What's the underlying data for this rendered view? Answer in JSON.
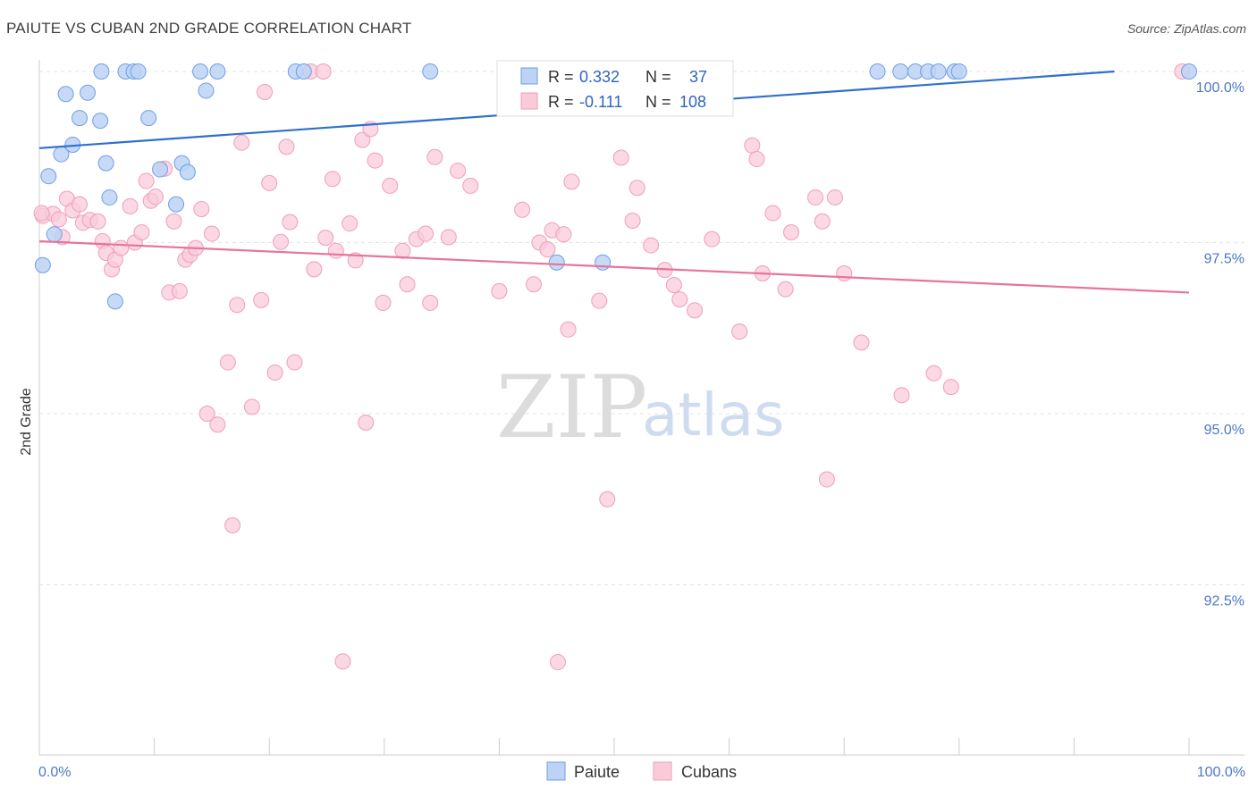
{
  "header": {
    "title": "PAIUTE VS CUBAN 2ND GRADE CORRELATION CHART",
    "source": "Source: ZipAtlas.com"
  },
  "watermark": {
    "zip": "ZIP",
    "atlas": "atlas"
  },
  "stats": [
    {
      "r_label": "R =",
      "r_value": "0.332",
      "n_label": "N =",
      "n_value": "37",
      "color": "#6f9ee8"
    },
    {
      "r_label": "R =",
      "r_value": "-0.111",
      "n_label": "N =",
      "n_value": "108",
      "color": "#f2a7bf"
    }
  ],
  "legend": [
    {
      "label": "Paiute",
      "color": "#6f9ee8"
    },
    {
      "label": "Cubans",
      "color": "#f2a7bf"
    }
  ],
  "colors": {
    "paiute_fill": "#bcd3f5",
    "paiute_stroke": "#6f9ee8",
    "paiute_line": "#2f6fcf",
    "cuban_fill": "#f9cbd9",
    "cuban_stroke": "#ef9fb9",
    "cuban_line": "#e8739b",
    "tick_label": "#4a78c8"
  },
  "chart_data": {
    "type": "scatter",
    "title": "PAIUTE VS CUBAN 2ND GRADE CORRELATION CHART",
    "xlabel": "",
    "ylabel": "2nd Grade",
    "xlim": [
      0,
      100
    ],
    "ylim": [
      90.1,
      100.4
    ],
    "y_ticks": [
      100.0,
      97.5,
      95.0,
      92.5
    ],
    "y_tick_labels": [
      "100.0%",
      "97.5%",
      "95.0%",
      "92.5%"
    ],
    "x_tick_labels": [
      "0.0%",
      "100.0%"
    ],
    "grid": true,
    "legend_position": "bottom-center",
    "series": [
      {
        "name": "Paiute",
        "trend": {
          "x": [
            0,
            93.5
          ],
          "y": [
            98.88,
            100.0
          ]
        },
        "points": [
          [
            0.3,
            97.17
          ],
          [
            0.8,
            98.47
          ],
          [
            1.3,
            97.62
          ],
          [
            1.9,
            98.79
          ],
          [
            2.3,
            99.67
          ],
          [
            2.9,
            98.93
          ],
          [
            3.5,
            99.32
          ],
          [
            4.2,
            99.69
          ],
          [
            5.3,
            99.28
          ],
          [
            5.4,
            100.0
          ],
          [
            5.8,
            98.66
          ],
          [
            6.1,
            98.16
          ],
          [
            6.6,
            96.64
          ],
          [
            7.5,
            100.0
          ],
          [
            8.2,
            100.0
          ],
          [
            8.6,
            100.0
          ],
          [
            9.5,
            99.32
          ],
          [
            10.5,
            98.57
          ],
          [
            11.9,
            98.06
          ],
          [
            12.4,
            98.66
          ],
          [
            12.9,
            98.53
          ],
          [
            14.0,
            100.0
          ],
          [
            14.5,
            99.72
          ],
          [
            15.5,
            100.0
          ],
          [
            22.3,
            100.0
          ],
          [
            23.0,
            100.0
          ],
          [
            34.0,
            100.0
          ],
          [
            45.0,
            97.21
          ],
          [
            49.0,
            97.21
          ],
          [
            72.9,
            100.0
          ],
          [
            74.9,
            100.0
          ],
          [
            76.2,
            100.0
          ],
          [
            77.3,
            100.0
          ],
          [
            78.2,
            100.0
          ],
          [
            79.6,
            100.0
          ],
          [
            80.0,
            100.0
          ],
          [
            100.0,
            100.0
          ]
        ]
      },
      {
        "name": "Cubans",
        "trend": {
          "x": [
            0,
            100
          ],
          "y": [
            97.52,
            96.77
          ]
        },
        "points": [
          [
            0.3,
            97.89
          ],
          [
            1.2,
            97.92
          ],
          [
            1.7,
            97.84
          ],
          [
            2.0,
            97.58
          ],
          [
            2.4,
            98.14
          ],
          [
            2.9,
            97.97
          ],
          [
            3.5,
            98.06
          ],
          [
            3.8,
            97.79
          ],
          [
            4.4,
            97.83
          ],
          [
            5.1,
            97.81
          ],
          [
            5.5,
            97.52
          ],
          [
            5.8,
            97.35
          ],
          [
            6.3,
            97.11
          ],
          [
            6.6,
            97.25
          ],
          [
            7.1,
            97.42
          ],
          [
            7.9,
            98.03
          ],
          [
            8.3,
            97.5
          ],
          [
            8.9,
            97.65
          ],
          [
            9.3,
            98.4
          ],
          [
            9.7,
            98.11
          ],
          [
            10.1,
            98.17
          ],
          [
            10.9,
            98.58
          ],
          [
            11.3,
            96.77
          ],
          [
            11.7,
            97.81
          ],
          [
            12.2,
            96.79
          ],
          [
            12.7,
            97.25
          ],
          [
            13.1,
            97.32
          ],
          [
            13.6,
            97.42
          ],
          [
            14.1,
            97.99
          ],
          [
            14.6,
            95.0
          ],
          [
            15.0,
            97.63
          ],
          [
            15.5,
            94.84
          ],
          [
            16.4,
            95.75
          ],
          [
            16.8,
            93.37
          ],
          [
            17.2,
            96.59
          ],
          [
            17.6,
            98.96
          ],
          [
            18.5,
            95.1
          ],
          [
            19.3,
            96.66
          ],
          [
            19.6,
            99.7
          ],
          [
            20.0,
            98.37
          ],
          [
            20.5,
            95.6
          ],
          [
            21.0,
            97.51
          ],
          [
            21.5,
            98.9
          ],
          [
            21.8,
            97.8
          ],
          [
            22.2,
            95.75
          ],
          [
            23.6,
            100.0
          ],
          [
            23.9,
            97.11
          ],
          [
            24.7,
            100.0
          ],
          [
            24.9,
            97.57
          ],
          [
            25.5,
            98.43
          ],
          [
            25.8,
            97.38
          ],
          [
            26.4,
            91.38
          ],
          [
            27.0,
            97.78
          ],
          [
            27.5,
            97.24
          ],
          [
            28.1,
            99.0
          ],
          [
            28.4,
            94.87
          ],
          [
            28.8,
            99.16
          ],
          [
            29.2,
            98.7
          ],
          [
            29.9,
            96.62
          ],
          [
            30.5,
            98.33
          ],
          [
            31.6,
            97.38
          ],
          [
            32.0,
            96.89
          ],
          [
            32.8,
            97.55
          ],
          [
            33.6,
            97.63
          ],
          [
            34.0,
            96.62
          ],
          [
            34.4,
            98.75
          ],
          [
            35.6,
            97.58
          ],
          [
            36.4,
            98.55
          ],
          [
            37.5,
            98.33
          ],
          [
            40.0,
            96.79
          ],
          [
            42.0,
            97.98
          ],
          [
            43.0,
            96.89
          ],
          [
            43.5,
            97.5
          ],
          [
            44.2,
            97.4
          ],
          [
            44.6,
            97.68
          ],
          [
            45.1,
            91.37
          ],
          [
            45.6,
            97.62
          ],
          [
            46.0,
            96.23
          ],
          [
            46.3,
            98.39
          ],
          [
            48.7,
            96.65
          ],
          [
            49.4,
            93.75
          ],
          [
            50.6,
            98.74
          ],
          [
            51.6,
            97.82
          ],
          [
            52.0,
            98.3
          ],
          [
            53.2,
            97.46
          ],
          [
            54.4,
            97.1
          ],
          [
            55.2,
            96.88
          ],
          [
            55.7,
            96.67
          ],
          [
            57.0,
            96.51
          ],
          [
            58.5,
            97.55
          ],
          [
            60.9,
            96.2
          ],
          [
            62.0,
            98.92
          ],
          [
            62.4,
            98.72
          ],
          [
            62.9,
            97.05
          ],
          [
            63.8,
            97.93
          ],
          [
            64.9,
            96.82
          ],
          [
            65.4,
            97.65
          ],
          [
            67.5,
            98.16
          ],
          [
            68.1,
            97.81
          ],
          [
            68.5,
            94.04
          ],
          [
            69.2,
            98.16
          ],
          [
            70.0,
            97.05
          ],
          [
            71.5,
            96.04
          ],
          [
            75.0,
            95.27
          ],
          [
            77.8,
            95.59
          ],
          [
            79.3,
            95.39
          ],
          [
            99.4,
            100.0
          ],
          [
            0.2,
            97.93
          ]
        ]
      }
    ]
  }
}
